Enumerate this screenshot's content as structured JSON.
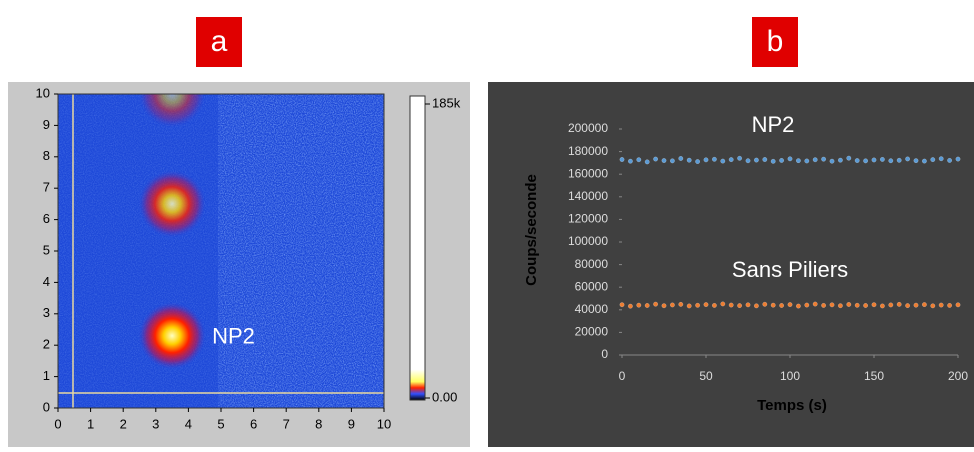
{
  "chart_data": [
    {
      "type": "heatmap",
      "label": "a",
      "annotation": "NP2",
      "xlim": [
        0,
        10
      ],
      "xticks": [
        0,
        1,
        2,
        3,
        4,
        5,
        6,
        7,
        8,
        9,
        10
      ],
      "ylim": [
        0,
        10
      ],
      "yticks": [
        0,
        1,
        2,
        3,
        4,
        5,
        6,
        7,
        8,
        9,
        10
      ],
      "colorbar_lim": [
        0,
        185000
      ],
      "colorbar_ticks": [
        {
          "value": 185000,
          "label": "185k"
        },
        {
          "value": 0,
          "label": "0.00"
        }
      ],
      "spots": {
        "x": [
          3.5,
          3.5,
          3.5
        ],
        "y": [
          2.3,
          6.5,
          10
        ],
        "values": [
          185000,
          150000,
          90000
        ]
      }
    },
    {
      "type": "scatter",
      "label": "b",
      "xlabel": "Temps (s)",
      "ylabel": "Coups/seconde",
      "xlim": [
        0,
        200
      ],
      "xticks": [
        0,
        50,
        100,
        150,
        200
      ],
      "ylim": [
        0,
        200000
      ],
      "yticks": [
        0,
        20000,
        40000,
        60000,
        80000,
        100000,
        120000,
        140000,
        160000,
        180000,
        200000
      ],
      "x": [
        0,
        5,
        10,
        15,
        20,
        25,
        30,
        35,
        40,
        45,
        50,
        55,
        60,
        65,
        70,
        75,
        80,
        85,
        90,
        95,
        100,
        105,
        110,
        115,
        120,
        125,
        130,
        135,
        140,
        145,
        150,
        155,
        160,
        165,
        170,
        175,
        180,
        185,
        190,
        195,
        200
      ],
      "series": [
        {
          "name": "NP2",
          "color": "#5b9bd5",
          "values": [
            173000,
            171500,
            172800,
            170900,
            173400,
            172100,
            171800,
            173900,
            172400,
            171200,
            172700,
            173200,
            171600,
            172900,
            174100,
            171900,
            172500,
            173000,
            171400,
            172200,
            173600,
            172000,
            171700,
            172800,
            173300,
            171500,
            172400,
            174200,
            172100,
            171800,
            172600,
            173100,
            171900,
            172300,
            173500,
            172000,
            171600,
            172900,
            173700,
            172200,
            173400
          ]
        },
        {
          "name": "Sans Piliers",
          "color": "#ed7d31",
          "values": [
            44500,
            43200,
            44100,
            43800,
            45000,
            43600,
            44300,
            44800,
            43400,
            44000,
            44600,
            43900,
            45200,
            44200,
            43700,
            44400,
            43500,
            44900,
            44100,
            43800,
            44600,
            43300,
            44200,
            45100,
            43900,
            44400,
            43600,
            44700,
            44000,
            43800,
            44500,
            43400,
            44300,
            44800,
            43700,
            44100,
            44600,
            43500,
            44200,
            43900,
            44400
          ]
        }
      ]
    }
  ]
}
